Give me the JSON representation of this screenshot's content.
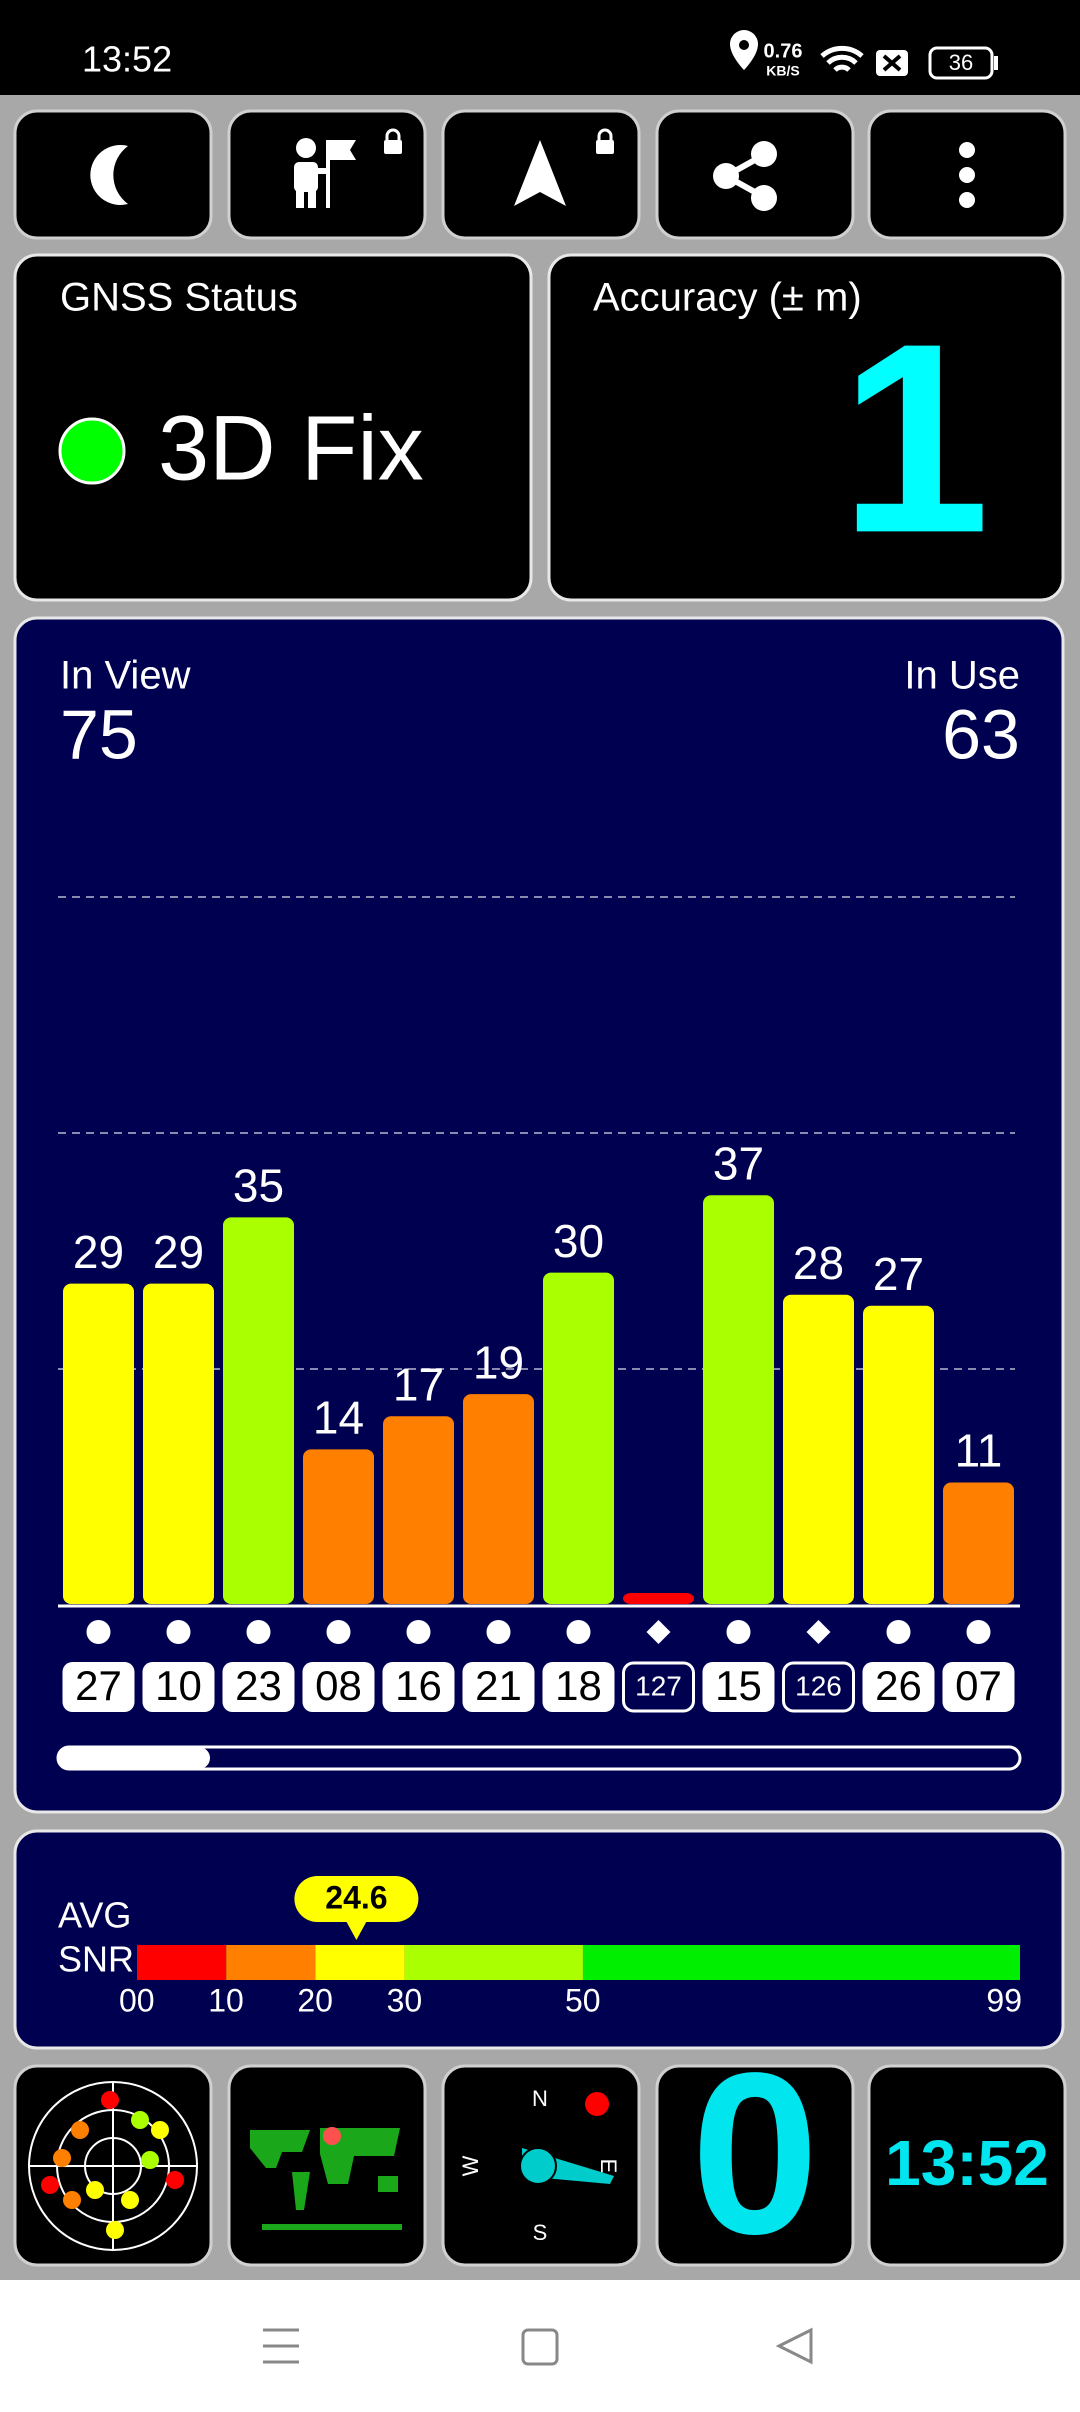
{
  "status_bar": {
    "time": "13:52",
    "net_speed": "0.76",
    "net_unit": "KB/S",
    "battery": "36"
  },
  "gnss_status": {
    "title": "GNSS Status",
    "value": "3D Fix"
  },
  "accuracy": {
    "title": "Accuracy (± m)",
    "value": "1"
  },
  "satellites": {
    "in_view_label": "In View",
    "in_view": "75",
    "in_use_label": "In Use",
    "in_use": "63"
  },
  "chart_data": {
    "type": "bar",
    "categories": [
      "27",
      "10",
      "23",
      "08",
      "16",
      "21",
      "18",
      "127",
      "15",
      "126",
      "26",
      "07"
    ],
    "values": [
      29,
      29,
      35,
      14,
      17,
      19,
      30,
      1,
      37,
      28,
      27,
      11
    ],
    "value_labels": [
      "29",
      "29",
      "35",
      "14",
      "17",
      "19",
      "30",
      null,
      "37",
      "28",
      "27",
      "11"
    ],
    "colors": [
      "#ffff00",
      "#ffff00",
      "#aaff00",
      "#ff8000",
      "#ff8000",
      "#ff8000",
      "#aaff00",
      "#ff0000",
      "#aaff00",
      "#ffff00",
      "#ffff00",
      "#ff8000"
    ],
    "markers": [
      "circle",
      "circle",
      "circle",
      "circle",
      "circle",
      "circle",
      "circle",
      "diamond",
      "circle",
      "diamond",
      "circle",
      "circle"
    ],
    "ylim": [
      0,
      64
    ]
  },
  "avg_snr": {
    "label_line1": "AVG",
    "label_line2": "SNR",
    "value": 24.6,
    "xlim": [
      0,
      99
    ],
    "xticks": [
      {
        "value": 0,
        "label": "00"
      },
      10,
      20,
      30,
      50,
      99
    ],
    "band_colors": [
      "#ff0000",
      "#ff8000",
      "#ffff00",
      "#aaff00",
      "#00ee00"
    ]
  },
  "compass": {
    "north": "N",
    "east": "E",
    "south": "S",
    "west": "W"
  },
  "speed": "0",
  "clock": "13:52"
}
